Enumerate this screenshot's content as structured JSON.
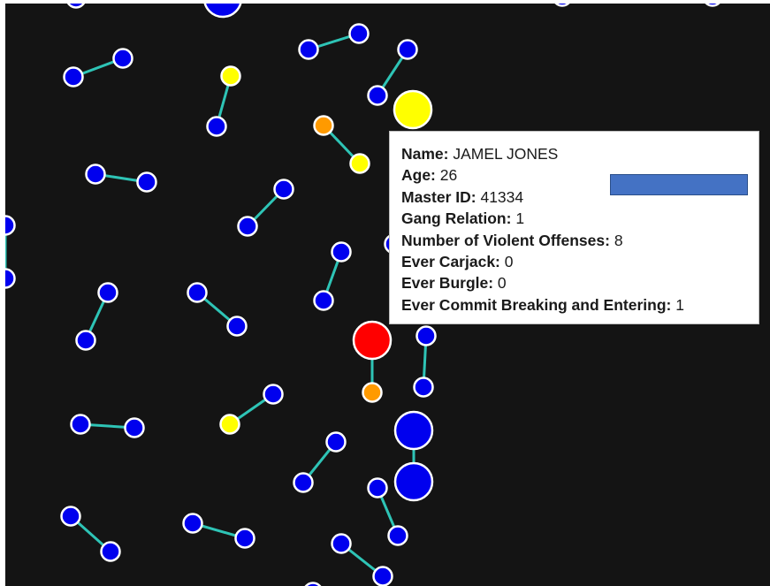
{
  "colors": {
    "background": "#141414",
    "link": "#2ec4b6",
    "node_stroke": "#ffffff",
    "blue": "#0000ee",
    "yellow": "#ffff00",
    "orange": "#ff9a00",
    "red": "#ff0000",
    "swatch": "#4472c4"
  },
  "graph": {
    "nodes": [
      {
        "id": "n0",
        "color": "blue",
        "size": "small"
      },
      {
        "id": "n1",
        "color": "blue",
        "size": "small"
      },
      {
        "id": "n2",
        "color": "blue",
        "size": "small"
      },
      {
        "id": "n3",
        "color": "blue",
        "size": "small"
      },
      {
        "id": "n4",
        "color": "blue",
        "size": "small"
      },
      {
        "id": "n5",
        "color": "blue",
        "size": "small"
      },
      {
        "id": "n6",
        "color": "yellow",
        "size": "large"
      },
      {
        "id": "n7",
        "color": "yellow",
        "size": "small"
      },
      {
        "id": "n8",
        "color": "blue",
        "size": "small"
      },
      {
        "id": "n9",
        "color": "orange",
        "size": "small"
      },
      {
        "id": "n10",
        "color": "yellow",
        "size": "small"
      },
      {
        "id": "n11",
        "color": "blue",
        "size": "small"
      },
      {
        "id": "n12",
        "color": "blue",
        "size": "small"
      },
      {
        "id": "n13",
        "color": "blue",
        "size": "small"
      },
      {
        "id": "n14",
        "color": "blue",
        "size": "small"
      },
      {
        "id": "n15",
        "color": "blue",
        "size": "small"
      },
      {
        "id": "n16",
        "color": "blue",
        "size": "small"
      },
      {
        "id": "n17",
        "color": "blue",
        "size": "small"
      },
      {
        "id": "n18",
        "color": "blue",
        "size": "small"
      },
      {
        "id": "n19",
        "color": "blue",
        "size": "small"
      },
      {
        "id": "n20",
        "color": "blue",
        "size": "small"
      },
      {
        "id": "n21",
        "color": "blue",
        "size": "small"
      },
      {
        "id": "n22",
        "color": "red",
        "size": "large"
      },
      {
        "id": "n23",
        "color": "orange",
        "size": "small"
      },
      {
        "id": "n24",
        "color": "blue",
        "size": "small"
      },
      {
        "id": "n25",
        "color": "blue",
        "size": "small"
      },
      {
        "id": "n26",
        "color": "blue",
        "size": "small"
      },
      {
        "id": "n27",
        "color": "blue",
        "size": "small"
      },
      {
        "id": "n28",
        "color": "yellow",
        "size": "small"
      },
      {
        "id": "n29",
        "color": "blue",
        "size": "small"
      },
      {
        "id": "n30",
        "color": "blue",
        "size": "small"
      },
      {
        "id": "n31",
        "color": "blue",
        "size": "small"
      },
      {
        "id": "n32",
        "color": "blue",
        "size": "large"
      },
      {
        "id": "n33",
        "color": "blue",
        "size": "large"
      },
      {
        "id": "n34",
        "color": "blue",
        "size": "small"
      },
      {
        "id": "n35",
        "color": "blue",
        "size": "small"
      },
      {
        "id": "n36",
        "color": "blue",
        "size": "small"
      },
      {
        "id": "n37",
        "color": "blue",
        "size": "small"
      },
      {
        "id": "n38",
        "color": "blue",
        "size": "small"
      },
      {
        "id": "n39",
        "color": "blue",
        "size": "small"
      },
      {
        "id": "n40",
        "color": "blue",
        "size": "small"
      },
      {
        "id": "n41",
        "color": "blue",
        "size": "small"
      },
      {
        "id": "n42",
        "color": "blue",
        "size": "small"
      },
      {
        "id": "n43",
        "color": "blue",
        "size": "small"
      },
      {
        "id": "n44",
        "color": "blue",
        "size": "large"
      },
      {
        "id": "n45",
        "color": "blue",
        "size": "small"
      },
      {
        "id": "n46",
        "color": "blue",
        "size": "small"
      },
      {
        "id": "n47",
        "color": "blue",
        "size": "small"
      },
      {
        "id": "n48",
        "color": "blue",
        "size": "small"
      }
    ],
    "links": [
      [
        "n0",
        "n1"
      ],
      [
        "n2",
        "n3"
      ],
      [
        "n4",
        "n5"
      ],
      [
        "n7",
        "n8"
      ],
      [
        "n9",
        "n10"
      ],
      [
        "n11",
        "n12"
      ],
      [
        "n13",
        "n14"
      ],
      [
        "n15",
        "n16"
      ],
      [
        "n17",
        "n18"
      ],
      [
        "n19",
        "n20"
      ],
      [
        "n22",
        "n23"
      ],
      [
        "n24",
        "n25"
      ],
      [
        "n26",
        "n27"
      ],
      [
        "n28",
        "n29"
      ],
      [
        "n30",
        "n31"
      ],
      [
        "n32",
        "n33"
      ],
      [
        "n34",
        "n35"
      ],
      [
        "n36",
        "n37"
      ],
      [
        "n38",
        "n39"
      ],
      [
        "n40",
        "n41"
      ],
      [
        "n42",
        "n43"
      ]
    ]
  },
  "tooltip": {
    "name_label": "Name:",
    "name_value": " JAMEL JONES",
    "age_label": "Age:",
    "age_value": " 26",
    "master_id_label": "Master ID:",
    "master_id_value": " 41334",
    "gang_relation_label": "Gang Relation:",
    "gang_relation_value": " 1",
    "violent_offenses_label": "Number of Violent Offenses:",
    "violent_offenses_value": " 8",
    "carjack_label": "Ever Carjack:",
    "carjack_value": " 0",
    "burgle_label": "Ever Burgle:",
    "burgle_value": " 0",
    "breaking_entering_label": "Ever Commit Breaking and Entering:",
    "breaking_entering_value": " 1"
  }
}
